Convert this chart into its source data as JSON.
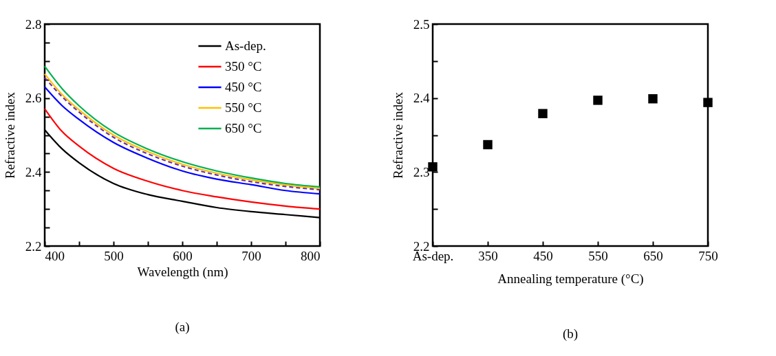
{
  "chart_data": [
    {
      "type": "line",
      "xlabel": "Wavelength (nm)",
      "ylabel": "Refractive index",
      "annotations": [
        "(a)"
      ],
      "x": [
        400,
        425,
        450,
        500,
        550,
        600,
        650,
        700,
        750,
        800
      ],
      "xlim": [
        400,
        800
      ],
      "xticks": [
        400,
        {
          "value": 450,
          "label": null
        },
        500,
        {
          "value": 550,
          "label": null
        },
        600,
        {
          "value": 650,
          "label": null
        },
        700,
        {
          "value": 750,
          "label": null
        },
        800
      ],
      "ylim": [
        2.2,
        2.8
      ],
      "yticks": [
        2.2,
        {
          "value": 2.25,
          "label": null
        },
        {
          "value": 2.3,
          "label": null
        },
        {
          "value": 2.35,
          "label": null
        },
        2.4,
        {
          "value": 2.45,
          "label": null
        },
        {
          "value": 2.5,
          "label": null
        },
        {
          "value": 2.55,
          "label": null
        },
        2.6,
        {
          "value": 2.65,
          "label": null
        },
        {
          "value": 2.7,
          "label": null
        },
        {
          "value": 2.75,
          "label": null
        },
        2.8
      ],
      "legend": "top right",
      "series": [
        {
          "name": "As-dep.",
          "color": "#000000",
          "values": [
            2.514,
            2.463,
            2.425,
            2.369,
            2.339,
            2.321,
            2.304,
            2.293,
            2.285,
            2.277
          ]
        },
        {
          "name": "350 °C",
          "color": "#ff0000",
          "values": [
            2.571,
            2.51,
            2.47,
            2.41,
            2.375,
            2.35,
            2.333,
            2.319,
            2.308,
            2.3
          ]
        },
        {
          "name": "450 °C",
          "color": "#0000ff",
          "values": [
            2.63,
            2.58,
            2.542,
            2.48,
            2.437,
            2.403,
            2.381,
            2.366,
            2.35,
            2.341
          ]
        },
        {
          "name": "550 °C",
          "color": "#ffc000",
          "values": [
            2.665,
            2.61,
            2.568,
            2.5,
            2.455,
            2.421,
            2.397,
            2.379,
            2.365,
            2.356
          ]
        },
        {
          "color": "#7030a0",
          "line_style": "dashed",
          "values": [
            2.655,
            2.604,
            2.562,
            2.494,
            2.449,
            2.416,
            2.392,
            2.374,
            2.361,
            2.352
          ]
        },
        {
          "name": "650 °C",
          "color": "#00b050",
          "values": [
            2.686,
            2.626,
            2.579,
            2.508,
            2.462,
            2.428,
            2.403,
            2.384,
            2.369,
            2.36
          ]
        }
      ]
    },
    {
      "type": "scatter",
      "xlabel": "Annealing temperature (°C)",
      "ylabel": "Refractive index",
      "annotations": [
        "(b)"
      ],
      "categories": [
        "As-dep.",
        "350",
        "450",
        "550",
        "650",
        "750"
      ],
      "ylim": [
        2.2,
        2.5
      ],
      "yticks": [
        2.2,
        {
          "value": 2.25,
          "label": null
        },
        2.3,
        {
          "value": 2.35,
          "label": null
        },
        2.4,
        {
          "value": 2.45,
          "label": null
        },
        2.5
      ],
      "marker": "square",
      "series": [
        {
          "color": "#000000",
          "values": [
            2.307,
            2.337,
            2.379,
            2.397,
            2.399,
            2.394
          ]
        }
      ]
    }
  ]
}
